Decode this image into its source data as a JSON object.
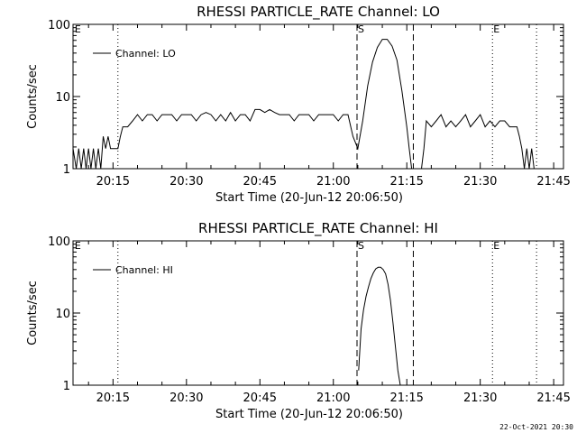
{
  "chart_data": [
    {
      "type": "line",
      "title": "RHESSI PARTICLE_RATE Channel: LO",
      "xlabel": "Start Time (20-Jun-12 20:06:50)",
      "ylabel": "Counts/sec",
      "yscale": "log",
      "ylim": [
        1,
        100
      ],
      "xlim": [
        "20:06:50",
        "21:47:00"
      ],
      "x_ticks": [
        "20:15",
        "20:30",
        "20:45",
        "21:00",
        "21:15",
        "21:30",
        "21:45"
      ],
      "y_ticks": [
        "1",
        "10",
        "100"
      ],
      "markers": {
        "dotted": [
          "20:16:00",
          "21:32:30",
          "21:41:30"
        ],
        "dashed": [
          "21:04:50",
          "21:16:20"
        ],
        "labels": [
          {
            "text": "E",
            "time": "20:07:00"
          },
          {
            "text": "S",
            "time": "21:04:50"
          },
          {
            "text": "E",
            "time": "21:32:30"
          }
        ]
      },
      "legend": {
        "position": "top-left",
        "entries": [
          "Channel: LO"
        ]
      },
      "series": [
        {
          "name": "Channel: LO",
          "color": "#000000",
          "x": [
            "20:06:50",
            "20:07:30",
            "20:08:00",
            "20:08:30",
            "20:09:00",
            "20:09:30",
            "20:10:00",
            "20:10:30",
            "20:11:00",
            "20:11:30",
            "20:12:00",
            "20:12:30",
            "20:13:00",
            "20:13:30",
            "20:14:00",
            "20:14:30",
            "20:15:00",
            "20:15:30",
            "20:16:00",
            "20:16:30",
            "20:17:00",
            "20:18:00",
            "20:19:00",
            "20:20:00",
            "20:21:00",
            "20:22:00",
            "20:23:00",
            "20:24:00",
            "20:25:00",
            "20:26:00",
            "20:27:00",
            "20:28:00",
            "20:29:00",
            "20:30:00",
            "20:31:00",
            "20:32:00",
            "20:33:00",
            "20:34:00",
            "20:35:00",
            "20:36:00",
            "20:37:00",
            "20:38:00",
            "20:39:00",
            "20:40:00",
            "20:41:00",
            "20:42:00",
            "20:43:00",
            "20:44:00",
            "20:45:00",
            "20:46:00",
            "20:47:00",
            "20:48:00",
            "20:49:00",
            "20:50:00",
            "20:51:00",
            "20:52:00",
            "20:53:00",
            "20:54:00",
            "20:55:00",
            "20:56:00",
            "20:57:00",
            "20:58:00",
            "20:59:00",
            "21:00:00",
            "21:01:00",
            "21:02:00",
            "21:03:00",
            "21:04:00",
            "21:05:00",
            "21:06:00",
            "21:07:00",
            "21:08:00",
            "21:09:00",
            "21:10:00",
            "21:11:00",
            "21:12:00",
            "21:13:00",
            "21:14:00",
            "21:15:00",
            "21:15:30",
            "21:16:00",
            "21:16:30",
            "21:17:00",
            "21:17:30",
            "21:18:00",
            "21:18:30",
            "21:19:00",
            "21:20:00",
            "21:21:00",
            "21:22:00",
            "21:23:00",
            "21:24:00",
            "21:25:00",
            "21:26:00",
            "21:27:00",
            "21:28:00",
            "21:29:00",
            "21:30:00",
            "21:31:00",
            "21:32:00",
            "21:33:00",
            "21:34:00",
            "21:35:00",
            "21:36:00",
            "21:37:00",
            "21:37:30",
            "21:38:00",
            "21:38:30",
            "21:39:00",
            "21:39:30",
            "21:40:00",
            "21:40:30",
            "21:41:00"
          ],
          "y": [
            1.9,
            1,
            1.9,
            1,
            1.9,
            1,
            1.9,
            1,
            1.9,
            1,
            1.9,
            1,
            2.8,
            1.9,
            2.8,
            1.9,
            1.9,
            1.9,
            1.9,
            2.8,
            3.8,
            3.8,
            4.6,
            5.6,
            4.6,
            5.6,
            5.6,
            4.6,
            5.6,
            5.6,
            5.6,
            4.6,
            5.6,
            5.6,
            5.6,
            4.6,
            5.6,
            6.0,
            5.6,
            4.6,
            5.6,
            4.6,
            6.0,
            4.6,
            5.6,
            5.6,
            4.6,
            6.6,
            6.6,
            6.0,
            6.6,
            6.0,
            5.6,
            5.6,
            5.6,
            4.6,
            5.6,
            5.6,
            5.6,
            4.6,
            5.6,
            5.6,
            5.6,
            5.6,
            4.6,
            5.6,
            5.6,
            2.8,
            1.9,
            4.6,
            14,
            30,
            48,
            62,
            62,
            50,
            32,
            12,
            3.8,
            1.9,
            1,
            1,
            1,
            1,
            1,
            1.9,
            4.6,
            3.8,
            4.6,
            5.6,
            3.8,
            4.6,
            3.8,
            4.6,
            5.6,
            3.8,
            4.6,
            5.6,
            3.8,
            4.6,
            3.8,
            4.6,
            4.6,
            3.8,
            3.8,
            3.8,
            2.8,
            1.9,
            1,
            1.9,
            1,
            1.9,
            1
          ]
        }
      ]
    },
    {
      "type": "line",
      "title": "RHESSI PARTICLE_RATE Channel: HI",
      "xlabel": "Start Time (20-Jun-12 20:06:50)",
      "ylabel": "Counts/sec",
      "yscale": "log",
      "ylim": [
        1,
        100
      ],
      "xlim": [
        "20:06:50",
        "21:47:00"
      ],
      "x_ticks": [
        "20:15",
        "20:30",
        "20:45",
        "21:00",
        "21:15",
        "21:30",
        "21:45"
      ],
      "y_ticks": [
        "1",
        "10",
        "100"
      ],
      "markers": {
        "dotted": [
          "20:16:00",
          "21:32:30",
          "21:41:30"
        ],
        "dashed": [
          "21:04:50",
          "21:16:20"
        ],
        "labels": [
          {
            "text": "E",
            "time": "20:07:00"
          },
          {
            "text": "S",
            "time": "21:04:50"
          },
          {
            "text": "E",
            "time": "21:32:30"
          }
        ]
      },
      "legend": {
        "position": "top-left",
        "entries": [
          "Channel: HI"
        ]
      },
      "series": [
        {
          "name": "Channel: HI",
          "color": "#000000",
          "x": [
            "21:05:10",
            "21:05:40",
            "21:06:10",
            "21:06:40",
            "21:07:10",
            "21:07:40",
            "21:08:10",
            "21:08:40",
            "21:09:10",
            "21:09:40",
            "21:10:10",
            "21:10:40",
            "21:11:10",
            "21:11:40",
            "21:12:10",
            "21:12:40",
            "21:13:10",
            "21:13:40"
          ],
          "y": [
            1.6,
            6.0,
            11,
            17,
            23,
            30,
            36,
            41,
            43,
            43,
            40,
            35,
            25,
            15,
            7.5,
            3.5,
            1.6,
            1
          ]
        }
      ]
    }
  ],
  "stamp": "22-Oct-2021 20:30"
}
